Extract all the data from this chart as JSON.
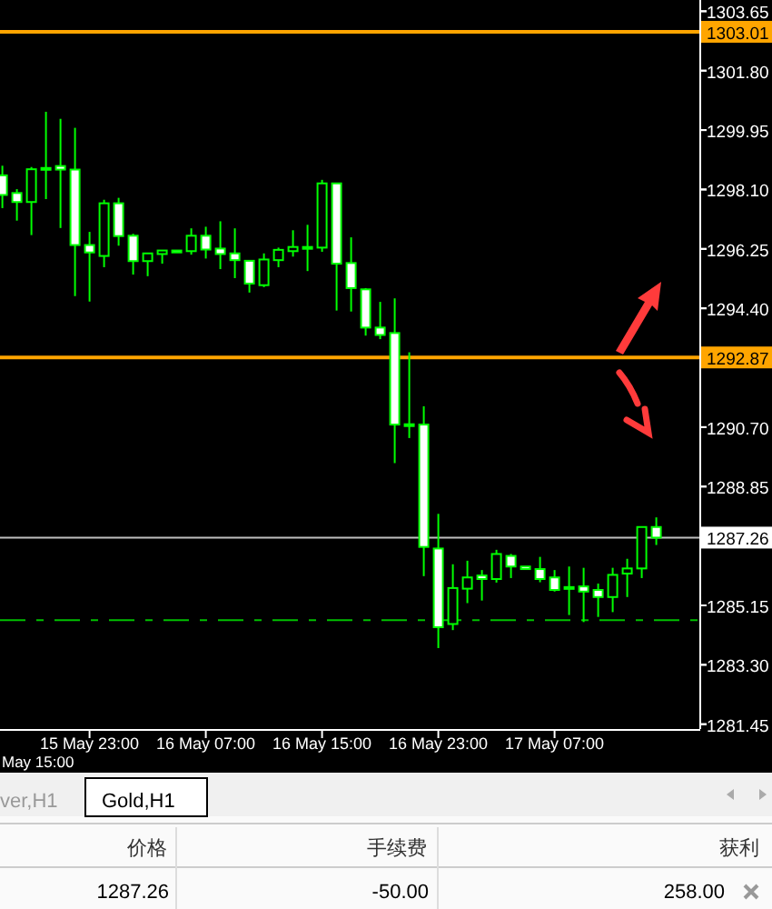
{
  "chart_data": {
    "type": "candlestick",
    "categories": [
      null,
      null,
      null,
      null,
      null,
      null,
      "15 May 23:00",
      null,
      null,
      null,
      null,
      null,
      null,
      null,
      "16 May 07:00",
      null,
      null,
      null,
      null,
      null,
      null,
      null,
      "16 May 15:00",
      null,
      null,
      null,
      null,
      null,
      null,
      null,
      "16 May 23:00",
      null,
      null,
      null,
      null,
      null,
      null,
      null,
      "17 May 07:00",
      null,
      null,
      null,
      null,
      null,
      null,
      null
    ],
    "color": "#00ff00",
    "ohlc": [
      [
        1298.54,
        1298.84,
        1297.52,
        1297.93
      ],
      [
        1297.99,
        1298.11,
        1297.13,
        1297.71
      ],
      [
        1297.71,
        1298.8,
        1296.68,
        1298.73
      ],
      [
        1298.77,
        1300.52,
        1297.8,
        1298.77
      ],
      [
        1298.83,
        1300.3,
        1296.9,
        1298.72
      ],
      [
        1298.72,
        1300.02,
        1294.78,
        1296.37
      ],
      [
        1296.37,
        1296.78,
        1294.61,
        1296.14
      ],
      [
        1296.03,
        1297.78,
        1295.68,
        1297.67
      ],
      [
        1297.67,
        1297.84,
        1296.35,
        1296.65
      ],
      [
        1296.66,
        1296.72,
        1295.45,
        1295.87
      ],
      [
        1295.87,
        1296.11,
        1295.4,
        1296.11
      ],
      [
        1296.09,
        1296.2,
        1295.79,
        1296.2
      ],
      [
        1296.2,
        1296.2,
        1296.14,
        1296.14
      ],
      [
        1296.18,
        1296.89,
        1296.07,
        1296.66
      ],
      [
        1296.66,
        1296.94,
        1295.95,
        1296.23
      ],
      [
        1296.26,
        1297.11,
        1295.62,
        1296.09
      ],
      [
        1296.11,
        1296.89,
        1295.34,
        1295.9
      ],
      [
        1295.88,
        1295.88,
        1294.89,
        1295.17
      ],
      [
        1295.12,
        1296.11,
        1295.06,
        1295.92
      ],
      [
        1295.9,
        1296.29,
        1295.68,
        1296.22
      ],
      [
        1296.18,
        1296.83,
        1296.01,
        1296.31
      ],
      [
        1296.31,
        1297.0,
        1295.56,
        1296.31
      ],
      [
        1296.29,
        1298.4,
        1296.16,
        1298.29
      ],
      [
        1298.29,
        1298.29,
        1294.33,
        1295.79
      ],
      [
        1295.81,
        1296.61,
        1294.3,
        1295.03
      ],
      [
        1294.99,
        1295.03,
        1293.55,
        1293.8
      ],
      [
        1293.8,
        1294.6,
        1293.44,
        1293.57
      ],
      [
        1293.63,
        1294.71,
        1289.58,
        1290.78
      ],
      [
        1290.79,
        1293.03,
        1290.36,
        1290.79
      ],
      [
        1290.78,
        1291.35,
        1286.06,
        1286.97
      ],
      [
        1286.92,
        1288.0,
        1283.82,
        1284.47
      ],
      [
        1284.57,
        1286.43,
        1284.38,
        1285.69
      ],
      [
        1285.67,
        1286.54,
        1285.22,
        1286.02
      ],
      [
        1286.08,
        1286.25,
        1285.3,
        1285.97
      ],
      [
        1285.97,
        1286.88,
        1285.86,
        1286.75
      ],
      [
        1286.69,
        1286.75,
        1286.0,
        1286.36
      ],
      [
        1286.36,
        1286.36,
        1286.28,
        1286.28
      ],
      [
        1286.28,
        1286.66,
        1285.87,
        1285.97
      ],
      [
        1286.02,
        1286.25,
        1285.58,
        1285.63
      ],
      [
        1285.72,
        1286.36,
        1284.85,
        1285.72
      ],
      [
        1285.74,
        1286.32,
        1284.63,
        1285.58
      ],
      [
        1285.63,
        1285.83,
        1284.79,
        1285.41
      ],
      [
        1285.41,
        1286.32,
        1284.94,
        1286.1
      ],
      [
        1286.14,
        1286.6,
        1285.41,
        1286.3
      ],
      [
        1286.3,
        1287.59,
        1286.0,
        1287.59
      ],
      [
        1287.59,
        1287.89,
        1287.03,
        1287.26
      ]
    ],
    "ylim": [
      1281.3,
      1304.0
    ],
    "yticks": [
      1303.65,
      {
        "value": 1301.8,
        "label": "1301.80"
      },
      1299.95,
      {
        "value": 1298.1,
        "label": "1298.10"
      },
      1296.25,
      {
        "value": 1294.4,
        "label": "1294.40"
      },
      {
        "value": 1290.7,
        "label": "1290.70"
      },
      1288.85,
      1285.15,
      {
        "value": 1283.3,
        "label": "1283.30"
      },
      1281.45
    ],
    "ref_lines": [
      {
        "axis": "y",
        "value": 1303.01,
        "label": "1303.01",
        "color": "#ffa500"
      },
      {
        "axis": "y",
        "value": 1292.87,
        "label": "1292.87",
        "color": "#ffa500"
      },
      {
        "axis": "y",
        "value": 1287.26,
        "label": "1287.26",
        "color": "#c0c0c0"
      },
      {
        "axis": "y",
        "value": 1284.69,
        "color": "#00c000",
        "line_style": "dashed"
      }
    ],
    "annotations": [
      "May 15:00",
      "ver,H1",
      "Gold,H1",
      "价格",
      "手续费",
      "获利",
      "1287.26",
      "-50.00",
      "258.00"
    ],
    "grid": false
  }
}
